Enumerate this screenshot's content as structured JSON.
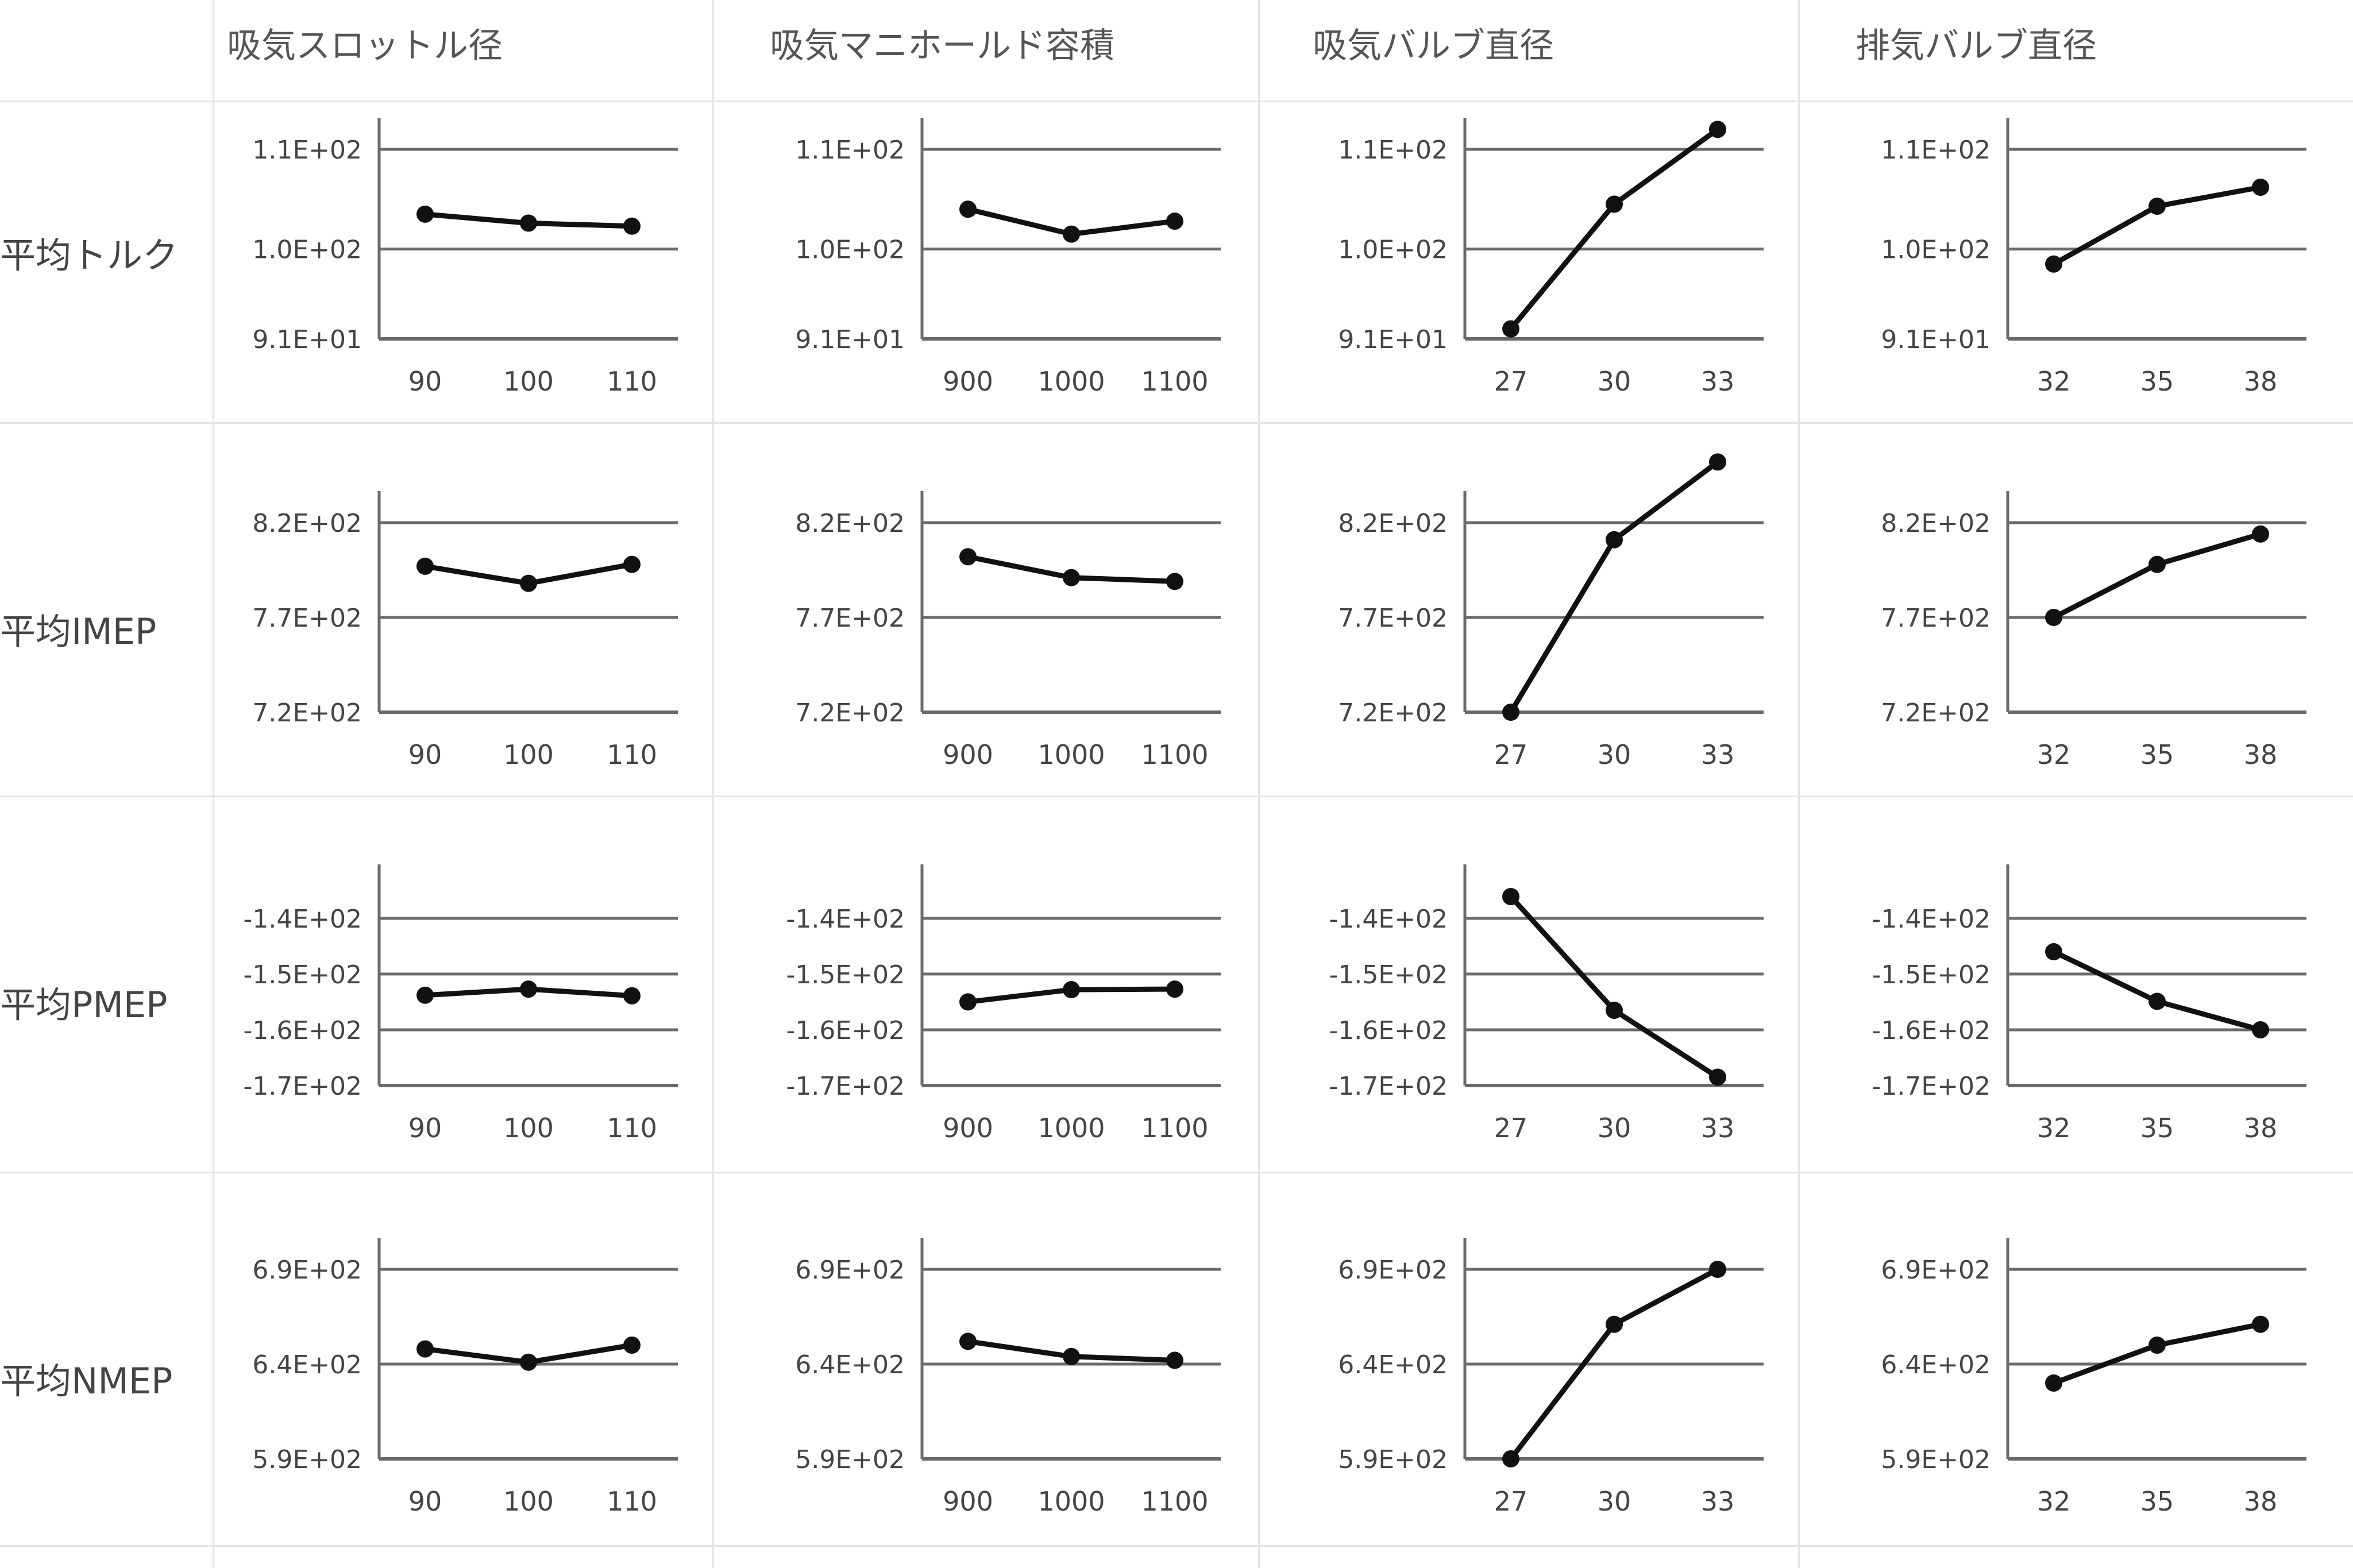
{
  "columns": [
    "吸気スロットル径",
    "吸気マニホールド容積",
    "吸気バルブ直径",
    "排気バルブ直径"
  ],
  "rows": [
    "平均トルク",
    "平均IMEP",
    "平均PMEP",
    "平均NMEP"
  ],
  "colors": {
    "line": "#111111",
    "grid": "#6a6a6a",
    "sheet_grid": "#e4e4e4"
  },
  "chart_data": [
    {
      "type": "line",
      "row": "平均トルク",
      "column": "吸気スロットル径",
      "categories": [
        "90",
        "100",
        "110"
      ],
      "values": [
        103.5,
        102.6,
        102.3
      ],
      "yticks": [
        91,
        100,
        110
      ],
      "ytick_labels": [
        "9.1E+01",
        "1.0E+02",
        "1.1E+02"
      ],
      "ylim": [
        91,
        110
      ],
      "grid": true
    },
    {
      "type": "line",
      "row": "平均トルク",
      "column": "吸気マニホールド容積",
      "categories": [
        "900",
        "1000",
        "1100"
      ],
      "values": [
        104,
        101.5,
        102.8
      ],
      "yticks": [
        91,
        100,
        110
      ],
      "ytick_labels": [
        "9.1E+01",
        "1.0E+02",
        "1.1E+02"
      ],
      "ylim": [
        91,
        110
      ],
      "grid": true
    },
    {
      "type": "line",
      "row": "平均トルク",
      "column": "吸気バルブ直径",
      "categories": [
        "27",
        "30",
        "33"
      ],
      "values": [
        92,
        104.5,
        112
      ],
      "yticks": [
        91,
        100,
        110
      ],
      "ytick_labels": [
        "9.1E+01",
        "1.0E+02",
        "1.1E+02"
      ],
      "ylim": [
        91,
        110
      ],
      "grid": true
    },
    {
      "type": "line",
      "row": "平均トルク",
      "column": "排気バルブ直径",
      "categories": [
        "32",
        "35",
        "38"
      ],
      "values": [
        98.5,
        104.3,
        106.2
      ],
      "yticks": [
        91,
        100,
        110
      ],
      "ytick_labels": [
        "9.1E+01",
        "1.0E+02",
        "1.1E+02"
      ],
      "ylim": [
        91,
        110
      ],
      "grid": true
    },
    {
      "type": "line",
      "row": "平均IMEP",
      "column": "吸気スロットル径",
      "categories": [
        "90",
        "100",
        "110"
      ],
      "values": [
        797,
        788,
        798
      ],
      "yticks": [
        720,
        770,
        820
      ],
      "ytick_labels": [
        "7.2E+02",
        "7.7E+02",
        "8.2E+02"
      ],
      "ylim": [
        720,
        820
      ],
      "grid": true
    },
    {
      "type": "line",
      "row": "平均IMEP",
      "column": "吸気マニホールド容積",
      "categories": [
        "900",
        "1000",
        "1100"
      ],
      "values": [
        802,
        791,
        789
      ],
      "yticks": [
        720,
        770,
        820
      ],
      "ytick_labels": [
        "7.2E+02",
        "7.7E+02",
        "8.2E+02"
      ],
      "ylim": [
        720,
        820
      ],
      "grid": true
    },
    {
      "type": "line",
      "row": "平均IMEP",
      "column": "吸気バルブ直径",
      "categories": [
        "27",
        "30",
        "33"
      ],
      "values": [
        720,
        811,
        852
      ],
      "yticks": [
        720,
        770,
        820
      ],
      "ytick_labels": [
        "7.2E+02",
        "7.7E+02",
        "8.2E+02"
      ],
      "ylim": [
        720,
        820
      ],
      "grid": true
    },
    {
      "type": "line",
      "row": "平均IMEP",
      "column": "排気バルブ直径",
      "categories": [
        "32",
        "35",
        "38"
      ],
      "values": [
        770,
        798,
        814
      ],
      "yticks": [
        720,
        770,
        820
      ],
      "ytick_labels": [
        "7.2E+02",
        "7.7E+02",
        "8.2E+02"
      ],
      "ylim": [
        720,
        820
      ],
      "grid": true
    },
    {
      "type": "line",
      "row": "平均PMEP",
      "column": "吸気スロットル径",
      "categories": [
        "90",
        "100",
        "110"
      ],
      "values": [
        -153.8,
        -152.7,
        -153.9
      ],
      "yticks": [
        -170,
        -160,
        -150,
        -140
      ],
      "ytick_labels": [
        "-1.7E+02",
        "-1.6E+02",
        "-1.5E+02",
        "-1.4E+02"
      ],
      "ylim": [
        -170,
        -136
      ],
      "grid": true
    },
    {
      "type": "line",
      "row": "平均PMEP",
      "column": "吸気マニホールド容積",
      "categories": [
        "900",
        "1000",
        "1100"
      ],
      "values": [
        -155,
        -152.8,
        -152.7
      ],
      "yticks": [
        -170,
        -160,
        -150,
        -140
      ],
      "ytick_labels": [
        "-1.7E+02",
        "-1.6E+02",
        "-1.5E+02",
        "-1.4E+02"
      ],
      "ylim": [
        -170,
        -136
      ],
      "grid": true
    },
    {
      "type": "line",
      "row": "平均PMEP",
      "column": "吸気バルブ直径",
      "categories": [
        "27",
        "30",
        "33"
      ],
      "values": [
        -136.1,
        -156.5,
        -168.5
      ],
      "yticks": [
        -170,
        -160,
        -150,
        -140
      ],
      "ytick_labels": [
        "-1.7E+02",
        "-1.6E+02",
        "-1.5E+02",
        "-1.4E+02"
      ],
      "ylim": [
        -170,
        -136
      ],
      "grid": true
    },
    {
      "type": "line",
      "row": "平均PMEP",
      "column": "排気バルブ直径",
      "categories": [
        "32",
        "35",
        "38"
      ],
      "values": [
        -146,
        -154.9,
        -160
      ],
      "yticks": [
        -170,
        -160,
        -150,
        -140
      ],
      "ytick_labels": [
        "-1.7E+02",
        "-1.6E+02",
        "-1.5E+02",
        "-1.4E+02"
      ],
      "ylim": [
        -170,
        -136
      ],
      "grid": true
    },
    {
      "type": "line",
      "row": "平均NMEP",
      "column": "吸気スロットル径",
      "categories": [
        "90",
        "100",
        "110"
      ],
      "values": [
        648,
        641,
        650
      ],
      "yticks": [
        590,
        640,
        690
      ],
      "ytick_labels": [
        "5.9E+02",
        "6.4E+02",
        "6.9E+02"
      ],
      "ylim": [
        590,
        690
      ],
      "grid": true
    },
    {
      "type": "line",
      "row": "平均NMEP",
      "column": "吸気マニホールド容積",
      "categories": [
        "900",
        "1000",
        "1100"
      ],
      "values": [
        652,
        644,
        642
      ],
      "yticks": [
        590,
        640,
        690
      ],
      "ytick_labels": [
        "5.9E+02",
        "6.4E+02",
        "6.9E+02"
      ],
      "ylim": [
        590,
        690
      ],
      "grid": true
    },
    {
      "type": "line",
      "row": "平均NMEP",
      "column": "吸気バルブ直径",
      "categories": [
        "27",
        "30",
        "33"
      ],
      "values": [
        590,
        661,
        690
      ],
      "yticks": [
        590,
        640,
        690
      ],
      "ytick_labels": [
        "5.9E+02",
        "6.4E+02",
        "6.9E+02"
      ],
      "ylim": [
        590,
        690
      ],
      "grid": true
    },
    {
      "type": "line",
      "row": "平均NMEP",
      "column": "排気バルブ直径",
      "categories": [
        "32",
        "35",
        "38"
      ],
      "values": [
        630,
        650,
        661
      ],
      "yticks": [
        590,
        640,
        690
      ],
      "ytick_labels": [
        "5.9E+02",
        "6.4E+02",
        "6.9E+02"
      ],
      "ylim": [
        590,
        690
      ],
      "grid": true
    }
  ]
}
